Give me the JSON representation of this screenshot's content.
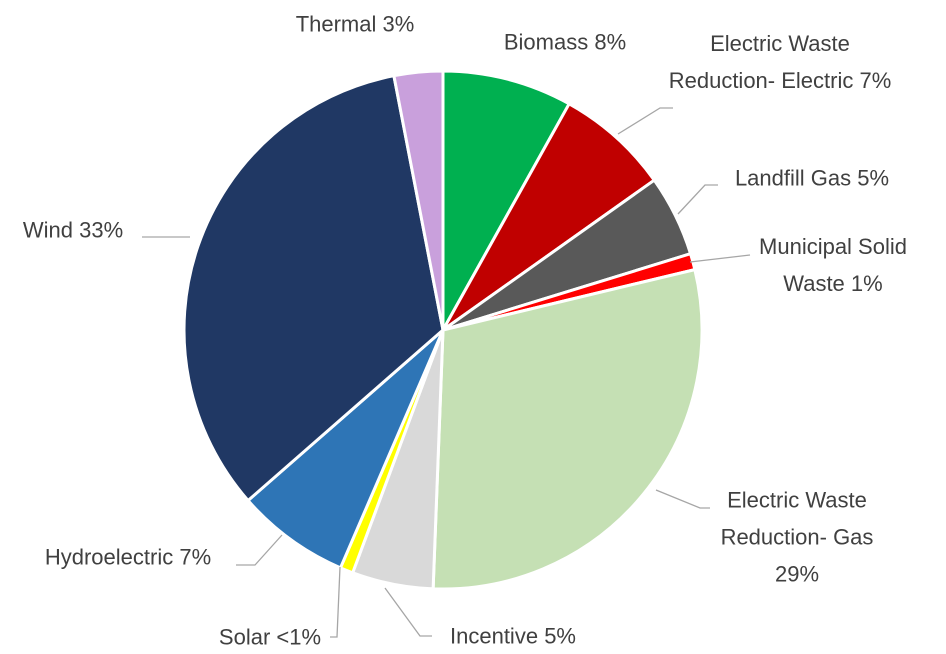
{
  "chart_data": {
    "type": "pie",
    "categories": [
      "Biomass",
      "Electric Waste Reduction- Electric",
      "Landfill Gas",
      "Municipal Solid Waste",
      "Electric Waste Reduction- Gas",
      "Incentive",
      "Solar",
      "Hydroelectric",
      "Wind",
      "Thermal"
    ],
    "values": [
      8,
      7,
      5,
      1,
      29,
      5,
      0.8,
      7,
      33,
      3
    ],
    "value_labels": [
      "8%",
      "7%",
      "5%",
      "1%",
      "29%",
      "5%",
      "<1%",
      "7%",
      "33%",
      "3%"
    ],
    "colors": [
      "#00b050",
      "#c00000",
      "#595959",
      "#ff0000",
      "#c5e0b4",
      "#d9d9d9",
      "#ffff00",
      "#2e75b6",
      "#203864",
      "#c9a0dc"
    ]
  }
}
